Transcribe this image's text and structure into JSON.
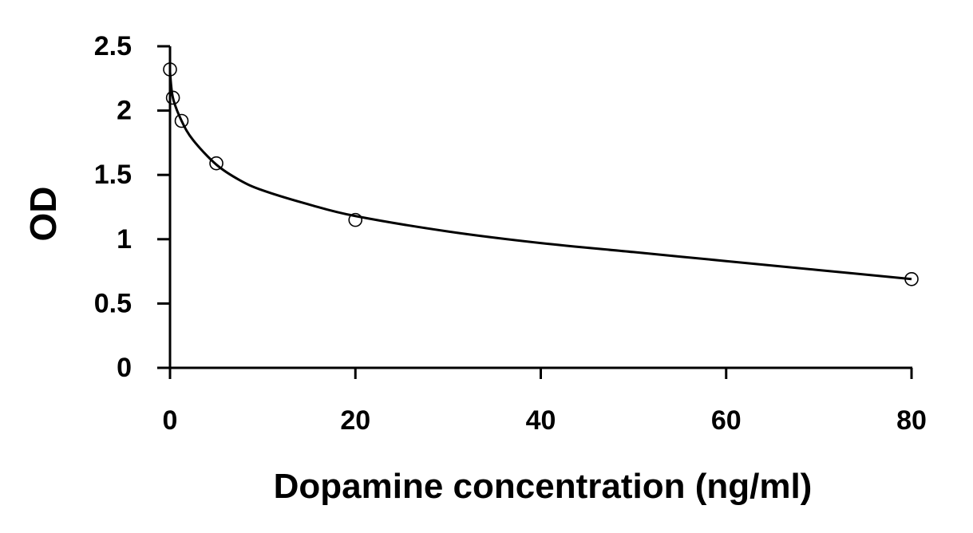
{
  "chart_data": {
    "type": "scatter",
    "xlabel": "Dopamine concentration (ng/ml)",
    "ylabel": "OD",
    "xlim": [
      0,
      80
    ],
    "ylim": [
      0,
      2.5
    ],
    "x_ticks": [
      0,
      20,
      40,
      60,
      80
    ],
    "y_ticks": [
      0,
      0.5,
      1,
      1.5,
      2,
      2.5
    ],
    "y_tick_labels": [
      "0",
      "0.5",
      "1",
      "1.5",
      "2",
      "2.5"
    ],
    "grid": false,
    "legend": "none",
    "series": [
      {
        "marker": "open-circle",
        "x": [
          0,
          0.3125,
          1.25,
          5,
          20,
          80
        ],
        "y": [
          2.32,
          2.1,
          1.92,
          1.59,
          1.15,
          0.69
        ]
      }
    ],
    "fit_curve": {
      "style": "solid-line",
      "x": [
        0,
        0.3125,
        1.25,
        2.5,
        5,
        7.5,
        10,
        15,
        20,
        30,
        40,
        50,
        60,
        70,
        80
      ],
      "y": [
        2.3,
        2.1,
        1.92,
        1.77,
        1.58,
        1.46,
        1.38,
        1.27,
        1.18,
        1.06,
        0.97,
        0.9,
        0.83,
        0.76,
        0.69
      ]
    }
  }
}
